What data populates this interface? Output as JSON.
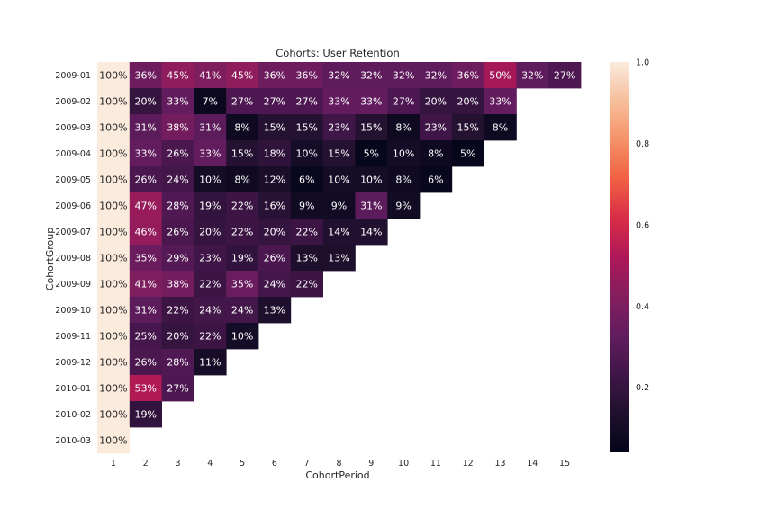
{
  "chart_data": {
    "type": "heatmap",
    "title": "Cohorts: User Retention",
    "xlabel": "CohortPeriod",
    "ylabel": "CohortGroup",
    "x_categories": [
      "1",
      "2",
      "3",
      "4",
      "5",
      "6",
      "7",
      "8",
      "9",
      "10",
      "11",
      "12",
      "13",
      "14",
      "15"
    ],
    "y_categories": [
      "2009-01",
      "2009-02",
      "2009-03",
      "2009-04",
      "2009-05",
      "2009-06",
      "2009-07",
      "2009-08",
      "2009-09",
      "2009-10",
      "2009-11",
      "2009-12",
      "2010-01",
      "2010-02",
      "2010-03"
    ],
    "values": [
      [
        1.0,
        0.36,
        0.45,
        0.41,
        0.45,
        0.36,
        0.36,
        0.32,
        0.32,
        0.32,
        0.32,
        0.36,
        0.5,
        0.32,
        0.27
      ],
      [
        1.0,
        0.2,
        0.33,
        0.07,
        0.27,
        0.27,
        0.27,
        0.33,
        0.33,
        0.27,
        0.2,
        0.2,
        0.33
      ],
      [
        1.0,
        0.31,
        0.38,
        0.31,
        0.08,
        0.15,
        0.15,
        0.23,
        0.15,
        0.08,
        0.23,
        0.15,
        0.08
      ],
      [
        1.0,
        0.33,
        0.26,
        0.33,
        0.15,
        0.18,
        0.1,
        0.15,
        0.05,
        0.1,
        0.08,
        0.05
      ],
      [
        1.0,
        0.26,
        0.24,
        0.1,
        0.08,
        0.12,
        0.06,
        0.1,
        0.1,
        0.08,
        0.06
      ],
      [
        1.0,
        0.47,
        0.28,
        0.19,
        0.22,
        0.16,
        0.09,
        0.09,
        0.31,
        0.09
      ],
      [
        1.0,
        0.46,
        0.26,
        0.2,
        0.22,
        0.2,
        0.22,
        0.14,
        0.14
      ],
      [
        1.0,
        0.35,
        0.29,
        0.23,
        0.19,
        0.26,
        0.13,
        0.13
      ],
      [
        1.0,
        0.41,
        0.38,
        0.22,
        0.35,
        0.24,
        0.22
      ],
      [
        1.0,
        0.31,
        0.22,
        0.24,
        0.24,
        0.13
      ],
      [
        1.0,
        0.25,
        0.2,
        0.22,
        0.1
      ],
      [
        1.0,
        0.26,
        0.28,
        0.11
      ],
      [
        1.0,
        0.53,
        0.27
      ],
      [
        1.0,
        0.19
      ],
      [
        1.0
      ]
    ],
    "cell_labels": [
      [
        "100%",
        "36%",
        "45%",
        "41%",
        "45%",
        "36%",
        "36%",
        "32%",
        "32%",
        "32%",
        "32%",
        "36%",
        "50%",
        "32%",
        "27%"
      ],
      [
        "100%",
        "20%",
        "33%",
        "7%",
        "27%",
        "27%",
        "27%",
        "33%",
        "33%",
        "27%",
        "20%",
        "20%",
        "33%"
      ],
      [
        "100%",
        "31%",
        "38%",
        "31%",
        "8%",
        "15%",
        "15%",
        "23%",
        "15%",
        "8%",
        "23%",
        "15%",
        "8%"
      ],
      [
        "100%",
        "33%",
        "26%",
        "33%",
        "15%",
        "18%",
        "10%",
        "15%",
        "5%",
        "10%",
        "8%",
        "5%"
      ],
      [
        "100%",
        "26%",
        "24%",
        "10%",
        "8%",
        "12%",
        "6%",
        "10%",
        "10%",
        "8%",
        "6%"
      ],
      [
        "100%",
        "47%",
        "28%",
        "19%",
        "22%",
        "16%",
        "9%",
        "9%",
        "31%",
        "9%"
      ],
      [
        "100%",
        "46%",
        "26%",
        "20%",
        "22%",
        "20%",
        "22%",
        "14%",
        "14%"
      ],
      [
        "100%",
        "35%",
        "29%",
        "23%",
        "19%",
        "26%",
        "13%",
        "13%"
      ],
      [
        "100%",
        "41%",
        "38%",
        "22%",
        "35%",
        "24%",
        "22%"
      ],
      [
        "100%",
        "31%",
        "22%",
        "24%",
        "24%",
        "13%"
      ],
      [
        "100%",
        "25%",
        "20%",
        "22%",
        "10%"
      ],
      [
        "100%",
        "26%",
        "28%",
        "11%"
      ],
      [
        "100%",
        "53%",
        "27%"
      ],
      [
        "100%",
        "19%"
      ],
      [
        "100%"
      ]
    ],
    "colorbar": {
      "min": 0.04,
      "max": 1.0,
      "ticks": [
        "0.2",
        "0.4",
        "0.6",
        "0.8",
        "1.0"
      ],
      "colormap": "rocket"
    },
    "grid": false
  }
}
